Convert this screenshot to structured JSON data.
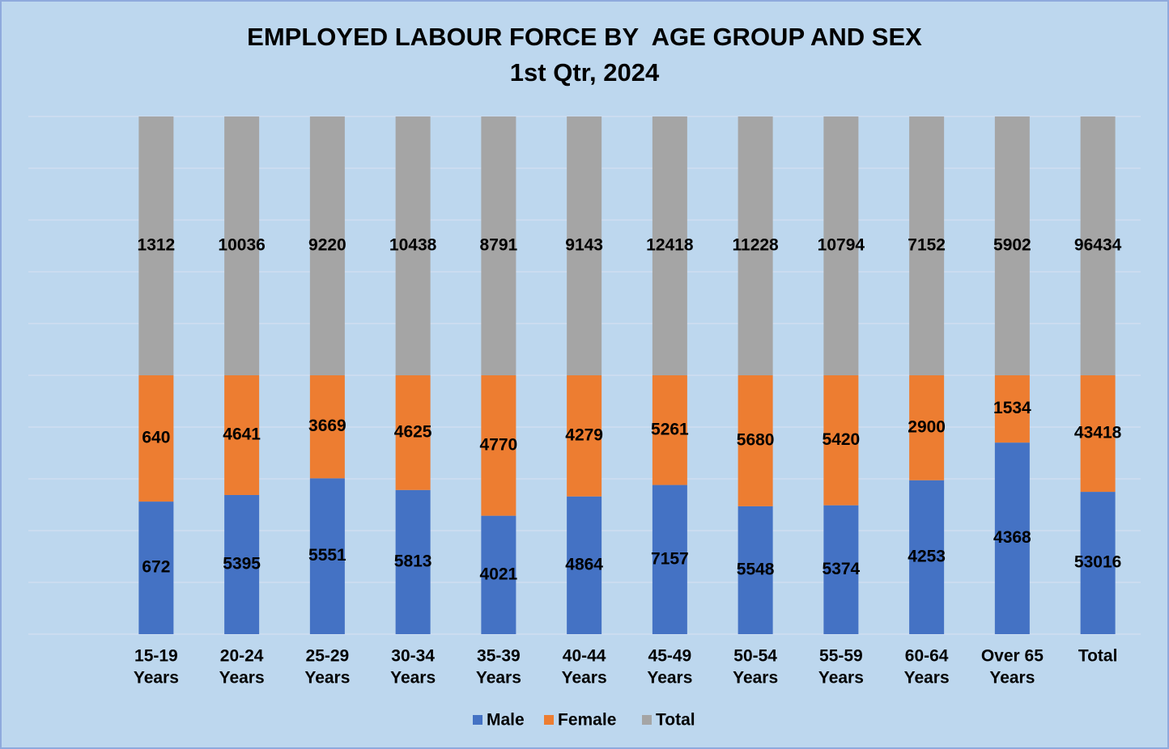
{
  "chart_data": {
    "type": "bar",
    "stacking": "percent",
    "title": "EMPLOYED LABOUR FORCE BY  AGE GROUP AND SEX",
    "subtitle": "1st Qtr, 2024",
    "categories": [
      [
        "15-19",
        "Years"
      ],
      [
        "20-24",
        "Years"
      ],
      [
        "25-29",
        "Years"
      ],
      [
        "30-34",
        "Years"
      ],
      [
        "35-39",
        "Years"
      ],
      [
        "40-44",
        "Years"
      ],
      [
        "45-49",
        "Years"
      ],
      [
        "50-54",
        "Years"
      ],
      [
        "55-59",
        "Years"
      ],
      [
        "60-64",
        "Years"
      ],
      [
        "Over 65",
        "Years"
      ],
      [
        "Total"
      ]
    ],
    "series": [
      {
        "name": "Male",
        "color": "#4472c4",
        "values": [
          672,
          5395,
          5551,
          5813,
          4021,
          4864,
          7157,
          5548,
          5374,
          4253,
          4368,
          53016
        ]
      },
      {
        "name": "Female",
        "color": "#ed7d31",
        "values": [
          640,
          4641,
          3669,
          4625,
          4770,
          4279,
          5261,
          5680,
          5420,
          2900,
          1534,
          43418
        ]
      },
      {
        "name": "Total",
        "color": "#a5a5a5",
        "values": [
          1312,
          10036,
          9220,
          10438,
          8791,
          9143,
          12418,
          11228,
          10794,
          7152,
          5902,
          96434
        ]
      }
    ],
    "ylim": [
      0,
      100
    ],
    "yticks": [
      0,
      10,
      20,
      30,
      40,
      50,
      60,
      70,
      80,
      90,
      100
    ],
    "show_tick_labels": false,
    "grid": true,
    "legend": "bottom"
  }
}
